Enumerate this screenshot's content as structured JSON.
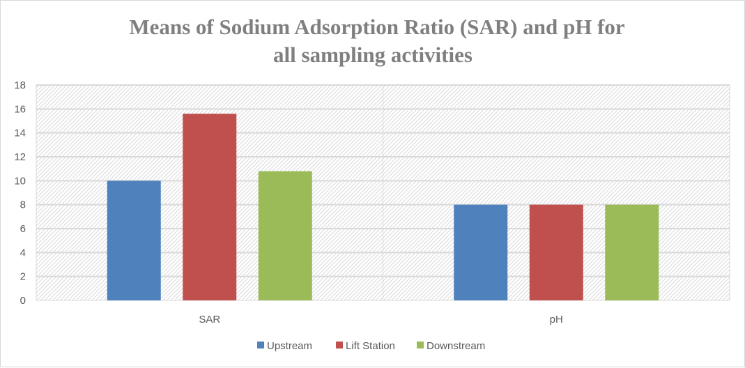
{
  "chart_data": {
    "type": "bar",
    "title": "Means of Sodium Adsorption Ratio (SAR) and pH for all sampling activities",
    "title_lines": [
      "Means of Sodium Adsorption Ratio (SAR) and pH for",
      "all sampling activities"
    ],
    "categories": [
      "SAR",
      "pH"
    ],
    "series": [
      {
        "name": "Upstream",
        "values": [
          10.0,
          8.0
        ],
        "color": "#4f81bd"
      },
      {
        "name": "Lift Station",
        "values": [
          15.6,
          8.0
        ],
        "color": "#c0504d"
      },
      {
        "name": "Downstream",
        "values": [
          10.8,
          8.0
        ],
        "color": "#9bbb59"
      }
    ],
    "ylim": [
      0,
      18
    ],
    "yticks": [
      "0",
      "2",
      "4",
      "6",
      "8",
      "10",
      "12",
      "14",
      "16",
      "18"
    ],
    "grid": true,
    "legend": "bottom",
    "xlabel": "",
    "ylabel": ""
  }
}
